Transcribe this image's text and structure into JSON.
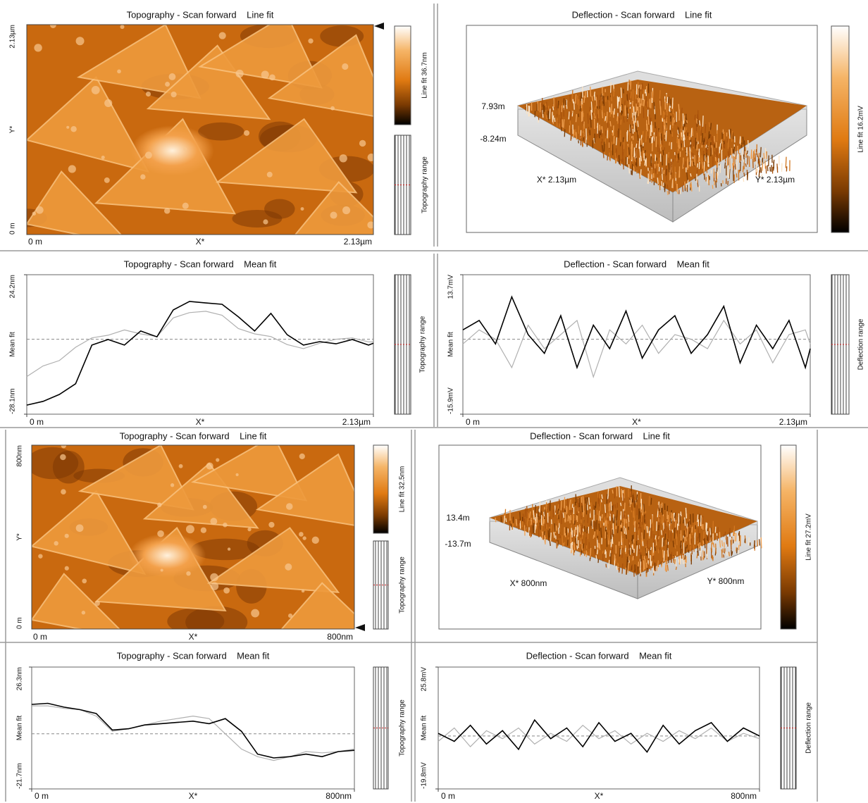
{
  "image_panels": [
    {
      "title": "Topography - Scan forward    Line fit",
      "y_top": "2.13µm",
      "y_axis": "Y*",
      "y_bottom": "0 m",
      "x_left": "0 m",
      "x_axis": "X*",
      "x_right": "2.13µm",
      "colorbar_label": "Line fit 36.7nm",
      "range_label": "Topography range"
    },
    {
      "title": "Deflection - Scan forward    Line fit",
      "z_top": "7.93m",
      "z_bottom": "-8.24m",
      "x_label": "X* 2.13µm",
      "y_label": "Y* 2.13µm",
      "colorbar_label": "Line fit 16.2mV"
    },
    {
      "title": "Topography - Scan forward    Line fit",
      "y_top": "800nm",
      "y_axis": "Y*",
      "y_bottom": "0 m",
      "x_left": "0 m",
      "x_axis": "X*",
      "x_right": "800nm",
      "colorbar_label": "Line fit 32.5nm",
      "range_label": "Topography range"
    },
    {
      "title": "Deflection - Scan forward    Line fit",
      "z_top": "13.4m",
      "z_bottom": "-13.7m",
      "x_label": "X* 800nm",
      "y_label": "Y* 800nm",
      "colorbar_label": "Line fit 27.2mV"
    }
  ],
  "chart_data": [
    {
      "type": "line",
      "title": "Topography - Scan forward    Mean fit",
      "ylabel": "Mean fit",
      "xlabel": "X*",
      "range_label": "Topography range",
      "xlim": [
        0,
        2.13
      ],
      "xticks": [
        {
          "value": 0,
          "label": "0 m"
        },
        {
          "value": 2.13,
          "label": "2.13µm"
        }
      ],
      "ylim": [
        -28.1,
        24.2
      ],
      "yticks": [
        {
          "value": -28.1,
          "label": "-28.1nm"
        },
        {
          "value": 24.2,
          "label": "24.2nm"
        }
      ],
      "mean_line": 0,
      "x": [
        0,
        0.1,
        0.2,
        0.3,
        0.4,
        0.5,
        0.6,
        0.7,
        0.8,
        0.9,
        1.0,
        1.1,
        1.2,
        1.3,
        1.4,
        1.5,
        1.6,
        1.7,
        1.8,
        1.9,
        2.0,
        2.1,
        2.13
      ],
      "series": [
        {
          "color": "#b0b0b0",
          "values": [
            -14,
            -10,
            -8,
            -3,
            0.5,
            1.5,
            3.5,
            2,
            1,
            8,
            10,
            10.5,
            9,
            4,
            2,
            1,
            -2,
            -3.5,
            -1.5,
            0,
            0.5,
            -1,
            -1
          ]
        },
        {
          "color": "#000000",
          "values": [
            -24.7,
            -23.3,
            -20.7,
            -16.7,
            -2.2,
            -0.1,
            -2.2,
            3.1,
            0.9,
            11,
            14.2,
            13.6,
            13.1,
            8.4,
            3.1,
            9.7,
            1.7,
            -2.2,
            -0.9,
            -1.7,
            -0.1,
            -2.2,
            -1.5
          ]
        }
      ]
    },
    {
      "type": "line",
      "title": "Deflection - Scan forward    Mean fit",
      "ylabel": "Mean fit",
      "xlabel": "X*",
      "range_label": "Deflection range",
      "xlim": [
        0,
        2.13
      ],
      "xticks": [
        {
          "value": 0,
          "label": "0 m"
        },
        {
          "value": 2.13,
          "label": "2.13µm"
        }
      ],
      "ylim": [
        -15.9,
        13.7
      ],
      "yticks": [
        {
          "value": -15.9,
          "label": "-15.9mV"
        },
        {
          "value": 13.7,
          "label": "13.7mV"
        }
      ],
      "mean_line": 0,
      "x": [
        0,
        0.1,
        0.2,
        0.3,
        0.4,
        0.5,
        0.6,
        0.7,
        0.8,
        0.9,
        1.0,
        1.1,
        1.2,
        1.3,
        1.4,
        1.5,
        1.6,
        1.7,
        1.8,
        1.9,
        2.0,
        2.1,
        2.13
      ],
      "series": [
        {
          "color": "#b0b0b0",
          "values": [
            -1,
            2,
            0,
            -6,
            3,
            -2,
            1,
            4,
            -8,
            2,
            -1,
            3,
            -3,
            1,
            0,
            -2,
            4,
            -1,
            2,
            -5,
            1,
            2,
            -1
          ]
        },
        {
          "color": "#000000",
          "values": [
            2,
            4,
            -1,
            9,
            1,
            -3,
            5,
            -6,
            3,
            -2,
            6,
            -4,
            2,
            5,
            -3,
            1,
            7,
            -5,
            3,
            -2,
            4,
            -6,
            -2
          ]
        }
      ]
    },
    {
      "type": "line",
      "title": "Topography - Scan forward    Mean fit",
      "ylabel": "Mean fit",
      "xlabel": "X*",
      "range_label": "Topography range",
      "xlim": [
        0,
        800
      ],
      "xticks": [
        {
          "value": 0,
          "label": "0 m"
        },
        {
          "value": 800,
          "label": "800nm"
        }
      ],
      "ylim": [
        -21.7,
        26.3
      ],
      "yticks": [
        {
          "value": -21.7,
          "label": "-21.7nm"
        },
        {
          "value": 26.3,
          "label": "26.3nm"
        }
      ],
      "mean_line": 0,
      "x": [
        0,
        40,
        80,
        120,
        160,
        200,
        240,
        280,
        320,
        360,
        400,
        440,
        480,
        520,
        560,
        600,
        640,
        680,
        720,
        760,
        800
      ],
      "series": [
        {
          "color": "#b0b0b0",
          "values": [
            11,
            11,
            10,
            9.5,
            7,
            1,
            2,
            3.5,
            5,
            6,
            7,
            6,
            0,
            -6,
            -9,
            -10.5,
            -9,
            -7,
            -7.5,
            -7,
            -6
          ]
        },
        {
          "color": "#000000",
          "values": [
            11.6,
            12,
            10.5,
            9.5,
            8,
            1.5,
            2,
            3.5,
            4,
            4.5,
            5,
            4,
            6,
            1,
            -8,
            -9.5,
            -9,
            -8,
            -9,
            -7,
            -6.5
          ]
        }
      ]
    },
    {
      "type": "line",
      "title": "Deflection - Scan forward    Mean fit",
      "ylabel": "Mean fit",
      "xlabel": "X*",
      "range_label": "Deflection range",
      "xlim": [
        0,
        800
      ],
      "xticks": [
        {
          "value": 0,
          "label": "0 m"
        },
        {
          "value": 800,
          "label": "800nm"
        }
      ],
      "ylim": [
        -19.8,
        25.8
      ],
      "yticks": [
        {
          "value": -19.8,
          "label": "-19.8mV"
        },
        {
          "value": 25.8,
          "label": "25.8mV"
        }
      ],
      "mean_line": 0,
      "x": [
        0,
        40,
        80,
        120,
        160,
        200,
        240,
        280,
        320,
        360,
        400,
        440,
        480,
        520,
        560,
        600,
        640,
        680,
        720,
        760,
        800
      ],
      "series": [
        {
          "color": "#b0b0b0",
          "values": [
            -2,
            3,
            -4,
            2,
            -1,
            3,
            -3,
            1,
            -2,
            4,
            -1,
            2,
            -3,
            1,
            -2,
            2,
            -1,
            3,
            -2,
            1,
            -1
          ]
        },
        {
          "color": "#000000",
          "values": [
            1,
            -2,
            4,
            -3,
            2,
            -5,
            6,
            -1,
            3,
            -4,
            5,
            -2,
            1,
            -6,
            4,
            -3,
            2,
            5,
            -2,
            3,
            0
          ]
        }
      ]
    }
  ]
}
